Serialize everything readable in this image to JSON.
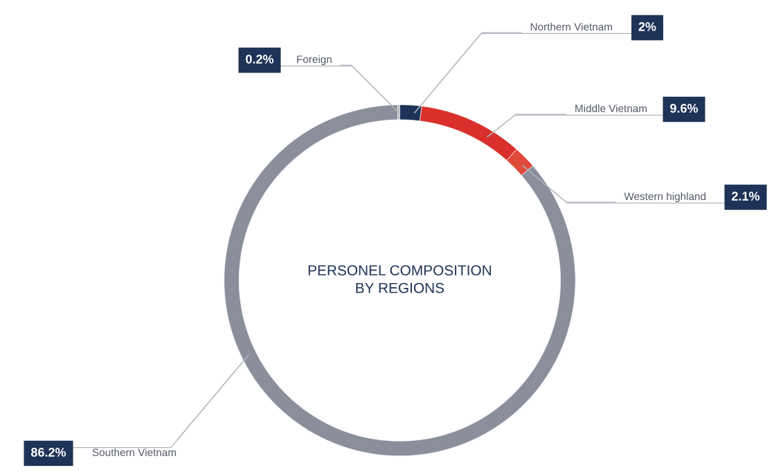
{
  "chart_data": {
    "type": "donut",
    "title": "PERSONEL COMPOSITION\nBY REGIONS",
    "categories": [
      "Foreign",
      "Northern Vietnam",
      "Middle Vietnam",
      "Western highland",
      "Southern Vietnam"
    ],
    "values": [
      0.2,
      2,
      9.6,
      2.1,
      86.2
    ],
    "colors": [
      "#b5b9c2",
      "#1f3358",
      "#d9302c",
      "#e04a3a",
      "#8a8f9b"
    ],
    "value_labels": [
      "0.2%",
      "2%",
      "9.6%",
      "2.1%",
      "86.2%"
    ]
  }
}
